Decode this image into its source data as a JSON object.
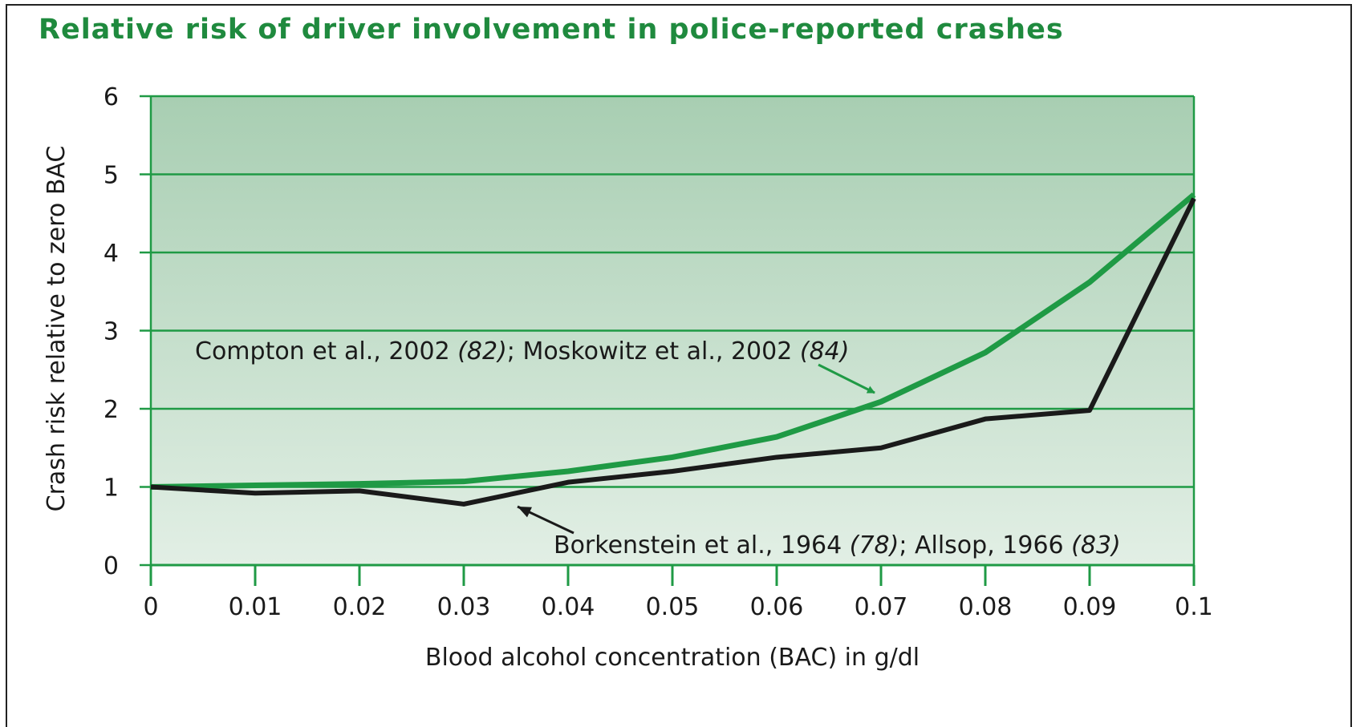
{
  "chart_data": {
    "type": "line",
    "title": "Relative risk of driver involvement in police-reported crashes",
    "xlabel": "Blood alcohol concentration (BAC) in g/dl",
    "ylabel": "Crash risk relative to zero BAC",
    "x": [
      0,
      0.01,
      0.02,
      0.03,
      0.04,
      0.05,
      0.06,
      0.07,
      0.08,
      0.09,
      0.1
    ],
    "series": [
      {
        "name": "Compton et al., 2002 (82); Moskowitz et al., 2002 (84)",
        "color": "#1f9a45",
        "values": [
          1.0,
          1.02,
          1.04,
          1.07,
          1.2,
          1.38,
          1.64,
          2.09,
          2.72,
          3.62,
          4.74
        ]
      },
      {
        "name": "Borkenstein et al., 1964 (78); Allsop, 1966 (83)",
        "color": "#1a1a1a",
        "values": [
          1.0,
          0.92,
          0.95,
          0.78,
          1.06,
          1.2,
          1.38,
          1.5,
          1.87,
          1.98,
          4.69
        ]
      }
    ],
    "xlim": [
      0,
      0.1
    ],
    "xticks": [
      0,
      0.01,
      0.02,
      0.03,
      0.04,
      0.05,
      0.06,
      0.07,
      0.08,
      0.09,
      0.1
    ],
    "ylim": [
      0,
      6
    ],
    "yticks": [
      0,
      1,
      2,
      3,
      4,
      5,
      6
    ],
    "grid": true
  }
}
